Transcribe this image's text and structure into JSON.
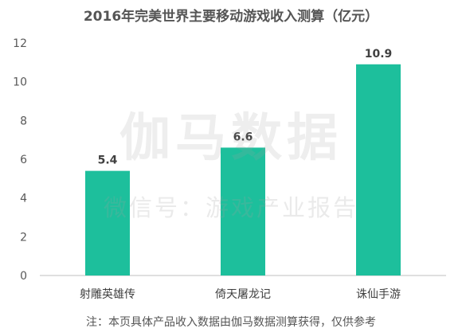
{
  "watermark": {
    "main": "伽马数据",
    "sub": "微信号：游戏产业报告"
  },
  "note": "注：本页具体产品收入数据由伽马数据测算获得，仅供参考",
  "chart_data": {
    "type": "bar",
    "title": "2016年完美世界主要移动游戏收入测算（亿元）",
    "categories": [
      "射雕英雄传",
      "倚天屠龙记",
      "诛仙手游"
    ],
    "values": [
      5.4,
      6.6,
      10.9
    ],
    "value_labels": [
      "5.4",
      "6.6",
      "10.9"
    ],
    "xlabel": "",
    "ylabel": "",
    "ylim": [
      0,
      12
    ],
    "yticks": [
      0,
      2,
      4,
      6,
      8,
      10,
      12
    ],
    "grid": false,
    "legend": "none",
    "bar_color": "#1dbf9c"
  }
}
